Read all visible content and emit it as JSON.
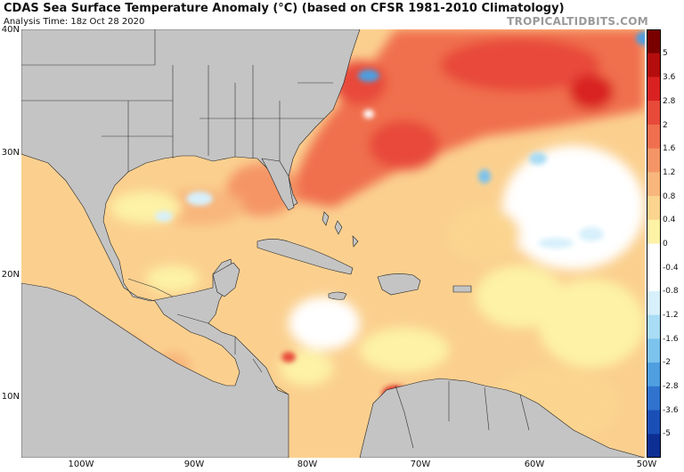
{
  "header": {
    "title": "CDAS Sea Surface Temperature Anomaly (°C) (based on CFSR 1981-2010 Climatology)",
    "subtitle": "Analysis Time: 18z Oct 28 2020",
    "brand": "TROPICALTIDBITS.COM"
  },
  "map": {
    "lat_labels": [
      "40N",
      "30N",
      "20N",
      "10N"
    ],
    "lon_labels": [
      "100W",
      "90W",
      "80W",
      "70W",
      "60W",
      "50W"
    ],
    "land_color": "#c4c4c4",
    "border_color": "#000000"
  },
  "colorbar": {
    "labels": [
      "5",
      "3.6",
      "2.8",
      "2",
      "1.6",
      "1.2",
      "0.8",
      "0.4",
      "0",
      "-0.4",
      "-0.8",
      "-1.2",
      "-1.6",
      "-2",
      "-2.8",
      "-3.6",
      "-5"
    ],
    "colors": [
      "#7a0000",
      "#b40d0d",
      "#d92121",
      "#e84a3a",
      "#f06f4f",
      "#f59566",
      "#f8b67c",
      "#fbd58f",
      "#fdf2a6",
      "#ffffff",
      "#ffffff",
      "#d7f0fb",
      "#a9dcf5",
      "#7cc3ee",
      "#4e9ee0",
      "#2f73cf",
      "#1a4fb8",
      "#0d2f94"
    ]
  }
}
